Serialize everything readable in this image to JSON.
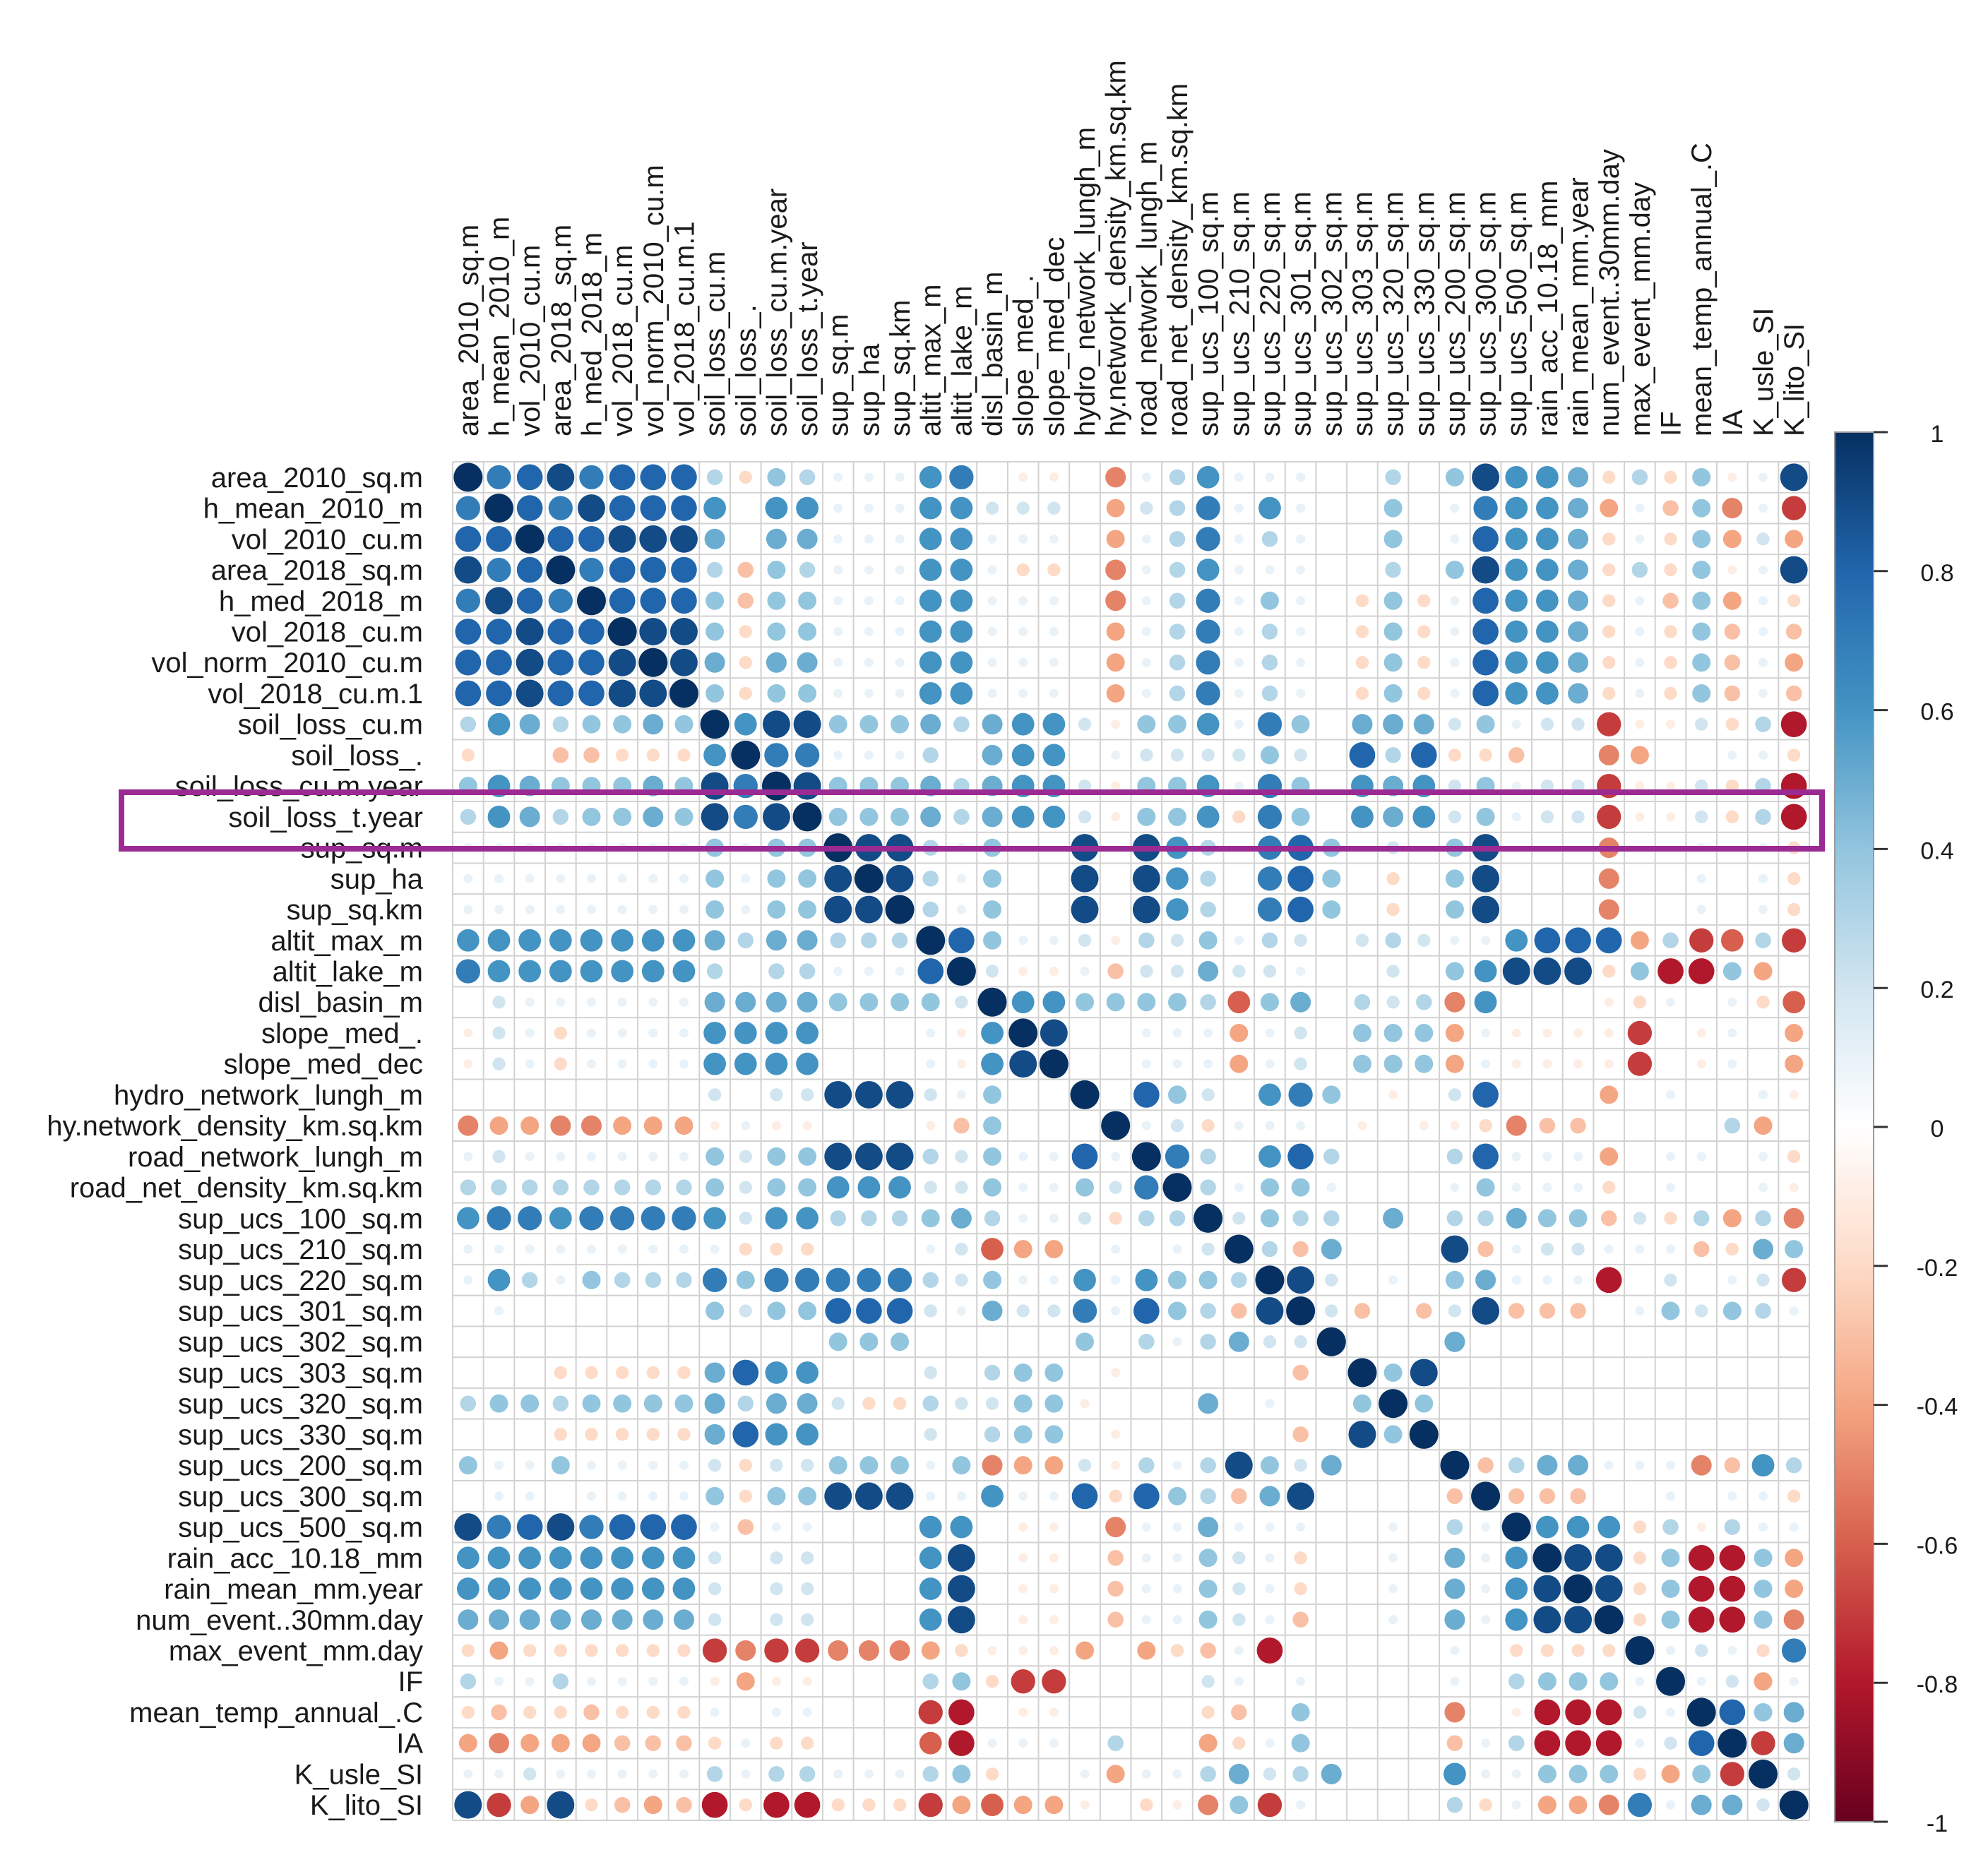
{
  "chart_data": {
    "type": "heatmap",
    "subtype": "correlation-matrix-circles",
    "title": "",
    "xlabel": "",
    "ylabel": "",
    "variables": [
      "area_2010_sq.m",
      "h_mean_2010_m",
      "vol_2010_cu.m",
      "area_2018_sq.m",
      "h_med_2018_m",
      "vol_2018_cu.m",
      "vol_norm_2010_cu.m",
      "vol_2018_cu.m.1",
      "soil_loss_cu.m",
      "soil_loss_.",
      "soil_loss_cu.m.year",
      "soil_loss_t.year",
      "sup_sq.m",
      "sup_ha",
      "sup_sq.km",
      "altit_max_m",
      "altit_lake_m",
      "disl_basin_m",
      "slope_med_.",
      "slope_med_dec",
      "hydro_network_lungh_m",
      "hy.network_density_km.sq.km",
      "road_network_lungh_m",
      "road_net_density_km.sq.km",
      "sup_ucs_100_sq.m",
      "sup_ucs_210_sq.m",
      "sup_ucs_220_sq.m",
      "sup_ucs_301_sq.m",
      "sup_ucs_302_sq.m",
      "sup_ucs_303_sq.m",
      "sup_ucs_320_sq.m",
      "sup_ucs_330_sq.m",
      "sup_ucs_200_sq.m",
      "sup_ucs_300_sq.m",
      "sup_ucs_500_sq.m",
      "rain_acc_10.18_mm",
      "rain_mean_mm.year",
      "num_event..30mm.day",
      "max_event_mm.day",
      "IF",
      "mean_temp_annual_.C",
      "IA",
      "K_usle_SI",
      "K_lito_SI"
    ],
    "legend": {
      "placement": "right",
      "range": [
        -1,
        1
      ],
      "ticks": [
        "1",
        "0.8",
        "0.6",
        "0.4",
        "0.2",
        "0",
        "-0.2",
        "-0.4",
        "-0.6",
        "-0.8",
        "-1"
      ],
      "colors": [
        "#67001f",
        "#b2182b",
        "#d6604d",
        "#f4a582",
        "#fddbc7",
        "#ffffff",
        "#d1e5f0",
        "#92c5de",
        "#4393c3",
        "#2166ac",
        "#053061"
      ]
    },
    "highlighted_row": "soil_loss_t.year",
    "highlight_color": "#9b2a92",
    "grid": true,
    "values": [
      "+9 +7 +8 +9 +7 +8 +8 +8 +3 -2 +4 +3 +1 +1 +1 +6 +7 +0 -1 -1 +0 -5 +1 +3 +6 +1 +1 +1 +0 +0 +3 +0 +4 +9 +6 +6 +5 -2 +3 -2 +4 -1 +1 +9",
      "+7 +9 +8 +7 +9 +8 +8 +8 +6 +0 +6 +6 +1 +1 +1 +6 +6 +2 +2 +2 +0 -4 +2 +3 +7 +1 +6 +1 +0 +0 +4 +0 +1 +7 +6 +6 +5 -4 +1 -3 +4 -5 +1 -7",
      "+8 +8 +9 +8 +8 +9 +9 +9 +5 +0 +5 +5 +1 +1 +1 +6 +6 +1 +1 +1 +0 -4 +1 +3 +7 +1 +3 +1 +0 +0 +4 +0 +1 +8 +6 +6 +5 -2 +1 -2 +4 -4 +2 -4",
      "+9 +7 +8 +9 +7 +8 +8 +8 +3 -3 +4 +3 +1 +1 +1 +6 +6 +1 -2 -2 +0 -5 +1 +3 +6 +1 +1 +1 +0 +0 +3 +0 +4 +9 +6 +6 +5 -2 +3 -2 +4 -1 +1 +9",
      "+7 +9 +8 +7 +9 +8 +8 +8 +4 -3 +4 +4 +1 +1 +1 +6 +6 +1 +1 +1 +0 -5 +1 +3 +7 +1 +4 +1 +0 -2 +4 -2 +1 +8 +6 +6 +5 -2 +1 -3 +4 -4 +1 -2",
      "+8 +8 +9 +8 +8 +9 +9 +9 +4 -2 +4 +4 +1 +1 +1 +6 +6 +1 +1 +1 +0 -4 +1 +3 +7 +1 +3 +1 +0 -2 +4 -2 +1 +8 +6 +6 +5 -2 +1 -2 +4 -3 +1 -3",
      "+8 +8 +9 +8 +8 +9 +9 +9 +5 -2 +5 +5 +1 +1 +1 +6 +6 +1 +1 +1 +0 -4 +1 +3 +7 +1 +3 +1 +0 -2 +4 -2 +1 +8 +6 +6 +5 -2 +1 -2 +4 -3 +1 -4",
      "+8 +8 +9 +8 +8 +9 +9 +9 +4 -2 +4 +4 +1 +1 +1 +6 +6 +1 +1 +1 +0 -4 +1 +3 +7 +1 +3 +1 +0 -2 +4 -2 +1 +8 +6 +6 +5 -2 +1 -2 +4 -3 +1 -3",
      "+3 +6 +5 +3 +4 +4 +5 +4 +9 +6 +9 +9 +4 +4 +4 +5 +3 +5 +6 +6 +2 -1 +4 +4 +6 +1 +7 +4 +0 +5 +5 +5 +2 +4 +1 +2 +2 -7 -1 -1 +2 -2 +3 -8",
      "-2 +0 +0 -3 -3 -2 -2 -2 +6 +9 +7 +7 +1 +1 +1 +3 +0 +5 +6 +6 +0 +1 +2 +2 +2 +2 +4 +2 +0 +8 +3 +8 -2 -2 -3 +0 +0 -5 -4 +0 +0 +1 +1 -2",
      "+4 +6 +5 +4 +4 +4 +5 +4 +9 +7 +9 +9 +4 +4 +4 +5 +3 +5 +6 +6 +2 -1 +4 +4 +6 +1 +7 +4 +0 +6 +5 +6 +2 +4 +1 +2 +2 -7 -1 -1 +2 -2 +3 -8",
      "+3 +6 +5 +3 +4 +4 +5 +4 +9 +7 +9 +9 +4 +4 +4 +5 +3 +5 +6 +6 +2 -1 +4 +4 +6 -2 +7 +4 +0 +6 +5 +6 +2 +4 +1 +2 +2 -7 -1 -1 +2 -2 +3 -8",
      "+1 +1 +1 +1 +1 +1 +1 +1 +4 +1 +4 +4 +9 +9 +9 +3 +1 +4 +0 +0 +9 +0 +9 +6 +3 +0 +7 +8 +4 +0 +2 +0 +4 +9 +0 +0 +0 -5 +0 +0 +1 +0 +1 -2",
      "+1 +1 +1 +1 +1 +1 +1 +1 +4 +1 +4 +4 +9 +9 +9 +3 +1 +4 +0 +0 +9 +0 +9 +6 +3 +0 +7 +8 +4 +0 -2 +0 +4 +9 +0 +0 +0 -5 +0 +0 +1 +0 +1 -2",
      "+1 +1 +1 +1 +1 +1 +1 +1 +4 +1 +4 +4 +9 +9 +9 +3 +1 +4 +0 +0 +9 +0 +9 +6 +3 +0 +7 +8 +4 +0 -2 +0 +4 +9 +0 +0 +0 -5 +0 +0 +1 +0 +1 -2",
      "+6 +6 +6 +6 +6 +6 +6 +6 +5 +3 +5 +5 +3 +3 +3 +9 +8 +4 +1 +1 +2 -1 +3 +2 +4 +1 +3 +2 +0 +2 +3 +2 +1 +1 +6 +8 +8 +8 -4 +3 -7 -6 +3 -7",
      "+7 +6 +6 +6 +6 +6 +6 +6 +3 +0 +3 +3 +1 +1 +1 +8 +9 +2 -1 -1 +1 -3 +2 +2 +5 +2 +2 +1 +0 +0 +2 +0 +4 +6 +9 +9 +9 -2 +4 -8 -8 +4 -4",
      "+0 +2 +1 +1 +1 +1 +1 +1 +5 +5 +5 +5 +4 +4 +4 +4 +2 +9 +6 +6 +4 +4 +4 +4 +3 -6 +4 +5 +0 +3 +2 +3 -5 +6 +0 +0 +0 -1 -2 +1 +0 +1 -2 -6",
      "-1 +2 +1 -2 +1 +1 +1 +1 +6 +6 +6 +6 +0 +0 +0 +1 -1 +6 +9 +9 +0 +0 +1 +1 +1 -4 +1 +2 +0 +4 +4 +4 -4 +1 -1 -1 -1 -1 -7 +0 -1 +1 +0 -4",
      "-1 +2 +1 -2 +1 +1 +1 +1 +6 +6 +6 +6 +0 +0 +0 +1 -1 +6 +9 +9 +0 +0 +1 +1 +1 -4 +1 +2 +0 +4 +4 +4 -4 +1 -1 -1 -1 -1 -7 +0 -1 +1 +0 -4",
      "+0 +0 +0 +0 +0 +0 +0 +0 +2 +0 +2 +2 +9 +9 +9 +2 +1 +4 +0 +0 +9 +0 +8 +4 +2 +0 +6 +7 +4 +0 -1 +0 +2 +8 +0 +0 +0 -4 +0 +1 +0 +0 +1 -1",
      "-5 -4 -4 -5 -5 -4 -4 -4 -1 +1 -1 -1 +0 +0 +0 -1 -3 +4 +0 +0 +0 +9 +1 +2 -2 +1 +1 +1 +0 -1 +0 -1 -1 -2 -5 -3 -3 +0 +0 +0 +0 +3 -4 +0",
      "+1 +2 +1 +1 +1 +1 +1 +1 +4 +2 +4 +4 +9 +9 +9 +3 +2 +4 +1 +1 +8 +1 +9 +7 +3 +0 +6 +8 +3 +0 +0 +0 +3 +8 +1 +1 +1 -4 +0 +1 +1 +0 +1 -2",
      "+3 +3 +3 +3 +3 +3 +3 +3 +4 +2 +4 +4 +6 +6 +6 +2 +2 +4 +1 +1 +4 +2 +7 +9 +3 +1 +4 +4 +1 +0 +0 +0 +1 +4 +1 +1 +1 -2 +0 +1 +0 +0 +1 -1",
      "+6 +7 +7 +6 +7 +7 +7 +7 +6 +2 +6 +6 +3 +3 +3 +4 +5 +3 +1 +1 +2 -2 +3 +3 +9 +2 +4 +3 +3 +0 +5 +0 +3 +3 +5 +4 +4 -3 +2 -2 +3 -4 +3 -5",
      "+1 +1 +1 +1 +1 +1 +1 +1 +1 -2 -2 -2 +0 +0 +0 +1 +2 -6 -4 -4 +0 +1 +0 +1 +2 +9 +3 -3 +5 +0 +0 +0 +9 -3 +1 +2 +2 +1 +1 +1 -3 -2 +5 +4",
      "+1 +6 +3 +1 +4 +3 +3 +3 +7 +4 +7 +7 +7 +7 +7 +3 +2 +4 +1 +1 +6 +1 +6 +4 +4 +3 +9 +9 +2 +0 +1 +0 +4 +5 +1 +1 +1 -8 +0 +2 +0 +1 +2 -7",
      "+0 +1 +0 +0 +0 +0 +0 +0 +4 +2 +4 +4 +8 +8 +8 +2 +1 +5 +2 +2 +7 +1 +8 +4 +3 -3 +9 +9 +2 -3 +0 -3 +2 +9 -3 -3 -3 +0 +1 +4 +2 +4 +3 +1",
      "+0 +0 +0 +0 +0 +0 +0 +0 +0 +0 +0 +0 +4 +4 +4 +0 +0 +0 +0 +0 +4 +0 +3 +1 +3 +5 +2 +2 +9 +0 +0 +0 +5 +0 +0 +0 +0 +0 +0 +0 +0 +0 +0 +0",
      "+0 +0 +0 -2 -2 -2 -2 -2 +5 +8 +6 +6 +0 +0 +0 +2 +0 +3 +4 +4 +0 -1 +0 +0 +0 +0 +0 -3 +0 +9 +4 +9 +0 +0 +0 +0 +0 +0 +0 +0 +0 +0 +0 +0",
      "+3 +4 +4 +3 +4 +4 +4 +4 +5 +3 +5 +5 +2 -2 -2 +3 +2 +2 +4 +4 -1 +0 +0 +0 +5 +0 +1 +0 +0 +4 +9 +4 +0 +0 +0 +0 +0 +0 +0 +0 +0 +0 +0 +0",
      "+0 +0 +0 -2 -2 -2 -2 -2 +5 +8 +6 +6 +0 +0 +0 +2 +0 +3 +4 +4 +0 -1 +0 +0 +0 +0 +0 -3 +0 +9 +4 +9 +0 +0 +0 +0 +0 +0 +0 +0 +0 +0 +0 +0",
      "+4 +1 +1 +4 +1 +1 +1 +1 +2 -2 +2 +2 +4 +4 +4 +1 +4 -5 -4 -4 +2 -1 +3 +1 +3 +9 +4 +2 +5 +0 +0 +0 +9 -3 +3 +5 +5 +1 +1 +1 -5 -3 +6 +3",
      "+0 +1 +1 +0 +1 +1 +1 +1 +4 -2 +4 +4 +9 +9 +9 +1 +1 +6 +1 +1 +8 -2 +8 +4 +3 -3 +5 +9 +0 +0 +0 +0 -3 +9 -3 -3 -3 +0 +0 +1 +0 +1 +1 -2",
      "+9 +7 +8 +9 +7 +8 +8 +8 +1 -3 +1 +1 +0 +0 +0 +6 +6 +0 -1 -1 +0 -5 +1 +1 +5 +1 +1 +1 +0 +0 +1 +0 +3 +1 +9 +6 +6 +6 -2 +3 -1 +3 +1 +1",
      "+6 +6 +6 +6 +6 +6 +6 +6 +2 +0 +2 +2 +0 +0 +0 +6 +9 +0 -1 -1 +0 -3 +1 +1 +4 +2 +1 -2 +0 +0 +1 +0 +5 +1 +6 +9 +9 +9 -2 +4 -8 -8 +4 -4",
      "+6 +6 +6 +6 +6 +6 +6 +6 +2 +0 +2 +2 +0 +0 +0 +6 +9 +0 -1 -1 +0 -3 +1 +1 +4 +2 +1 -2 +0 +0 +1 +0 +5 +1 +6 +9 +9 +9 -2 +4 -8 -8 +4 -4",
      "+5 +5 +5 +5 +5 +5 +5 +5 +2 +0 +2 +2 +0 +0 +0 +6 +9 +0 -1 -1 +0 -3 +1 +1 +4 +2 +1 -3 +0 +0 +1 +0 +5 +1 +6 +9 +9 +9 -2 +4 -8 -8 +4 -5",
      "-2 -4 -2 -2 -2 -2 -2 -2 -7 -5 -7 -7 -5 -5 -5 -4 -2 -1 -1 -1 -4 +0 -4 -2 -3 +1 -8 +0 +0 +0 +0 +0 +1 +0 -2 -2 -2 -2 +9 +1 +2 +1 -2 +7",
      "+3 +1 +1 +3 +1 +1 +1 +1 -1 -4 -1 -1 +0 +0 +0 +3 +4 -2 -7 -7 +0 +0 +0 +0 +2 +1 +0 +1 +0 +0 +0 +0 +1 +0 +3 +4 +4 +4 +1 +9 +1 +2 -4 +1",
      "-2 -3 -2 -2 -3 -2 -2 -2 +1 +0 +1 +1 +0 +0 +0 -7 -8 +0 -1 -1 +0 +0 +0 +0 -2 -3 +0 +4 +0 +0 +0 +0 -5 +0 -1 -8 -8 -8 +2 +1 +9 +8 +4 +5",
      "-4 -5 -4 -4 -4 -3 -3 -3 -2 +1 -2 -2 +0 +0 +0 -6 -8 +1 +1 +1 +0 +3 +0 +0 -4 -2 +1 +4 +0 +0 +0 +0 -3 +1 +3 -8 -8 -8 +1 +2 +8 +9 -7 +5",
      "+1 +1 +2 +1 +1 +1 +1 +1 +3 +1 +3 +3 +1 +1 +1 +3 +4 -2 +0 +0 +1 -4 +1 +1 +3 +5 +2 +3 +5 +0 +0 +0 +6 +1 +1 +4 +4 +4 -2 -4 +4 -7 +9 +2",
      "+9 -7 -4 +9 -2 -3 -4 -3 -8 -2 -8 -8 -2 -2 -2 -7 -4 -6 -4 -4 -1 +0 -2 -1 -5 +4 -7 +1 +0 +0 +0 +0 +3 -2 +1 -4 -4 -5 +7 +1 +5 +5 +2 +9"
    ]
  }
}
